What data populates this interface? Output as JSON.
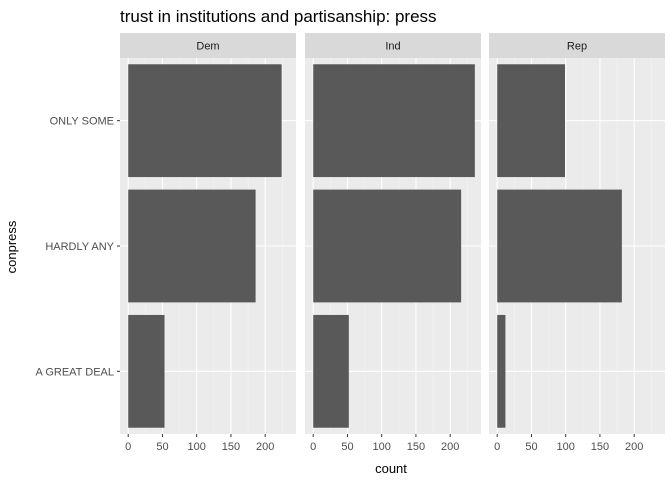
{
  "chart_data": {
    "type": "bar",
    "orientation": "horizontal",
    "title": "trust in institutions and partisanship: press",
    "xlabel": "count",
    "ylabel": "conpress",
    "categories": [
      "ONLY SOME",
      "HARDLY ANY",
      "A GREAT DEAL"
    ],
    "xlim": [
      -12,
      245
    ],
    "xticks": [
      0,
      50,
      100,
      150,
      200
    ],
    "facets": [
      {
        "name": "Dem",
        "values": [
          224,
          186,
          53
        ]
      },
      {
        "name": "Ind",
        "values": [
          236,
          216,
          52
        ]
      },
      {
        "name": "Rep",
        "values": [
          99,
          182,
          12
        ]
      }
    ],
    "grid": true,
    "colors": {
      "bar": "#595959",
      "panel": "#ebebeb",
      "strip": "#d9d9d9",
      "grid_major": "#ffffff",
      "grid_minor": "#f2f2f2"
    }
  }
}
